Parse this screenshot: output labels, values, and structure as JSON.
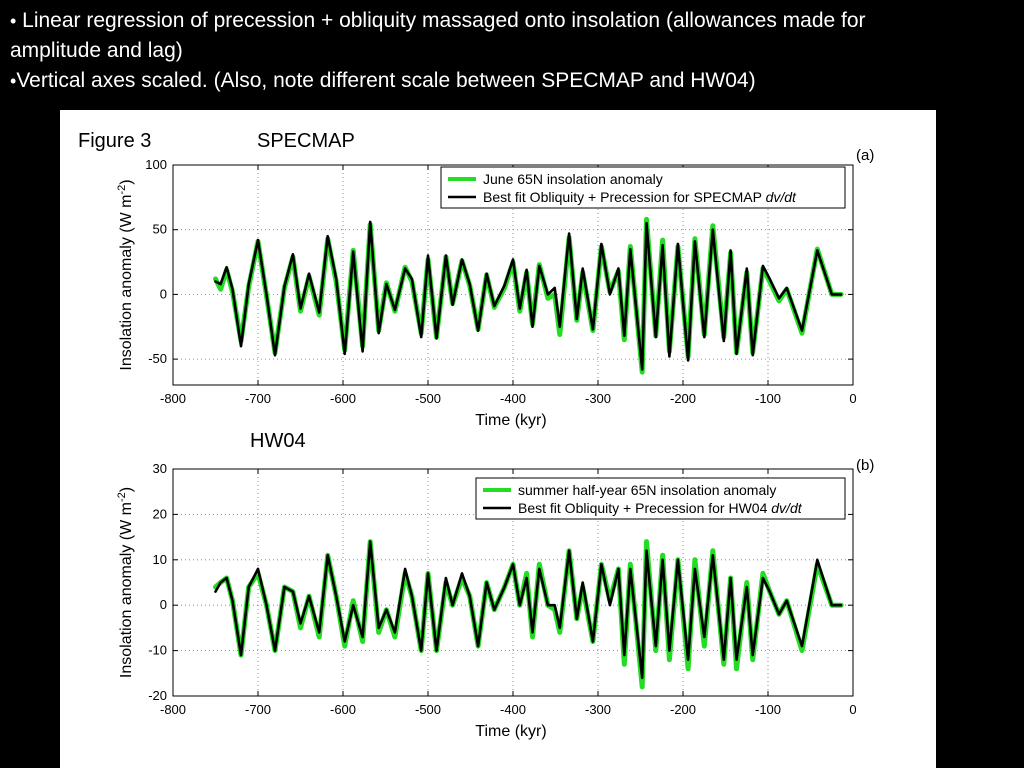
{
  "slide": {
    "bullet1_glyph": "•",
    "bullet1_line1": " Linear regression of precession + obliquity massaged onto insolation (allowances made for",
    "bullet1_line2": "amplitude and lag)",
    "bullet2_glyph": "•",
    "bullet2_text": "Vertical axes scaled. (Also, note different scale between SPECMAP and HW04)"
  },
  "figure": {
    "figure_label": "Figure 3",
    "colors": {
      "insolation": "#22dd22",
      "fit": "#000000",
      "grid": "#777777"
    }
  },
  "chart_data": [
    {
      "type": "line",
      "panel_label": "(a)",
      "heading": "SPECMAP",
      "title": "",
      "xlabel": "Time (kyr)",
      "ylabel": "Insolation anomaly (W m",
      "ylabel_sup": "-2",
      "ylabel_tail": ")",
      "xlim": [
        -800,
        0
      ],
      "ylim": [
        -70,
        100
      ],
      "xticks": [
        -800,
        -700,
        -600,
        -500,
        -400,
        -300,
        -200,
        -100,
        0
      ],
      "yticks": [
        -50,
        0,
        50,
        100
      ],
      "grid": true,
      "legend_position": "top-right",
      "series": [
        {
          "name": "June 65N insolation anomaly",
          "color": "#22dd22",
          "x": [
            -750,
            -744,
            -737,
            -730,
            -720,
            -711,
            -700,
            -690,
            -680,
            -669,
            -659,
            -650,
            -640,
            -628,
            -618,
            -608,
            -598,
            -588,
            -577,
            -568,
            -558,
            -549,
            -539,
            -527,
            -519,
            -508,
            -500,
            -490,
            -479,
            -471,
            -460,
            -451,
            -441,
            -431,
            -422,
            -410,
            -400,
            -392,
            -384,
            -377,
            -369,
            -359,
            -351,
            -345,
            -334,
            -325,
            -318,
            -306,
            -296,
            -286,
            -276,
            -269,
            -262,
            -248,
            -243,
            -232,
            -224,
            -216,
            -206,
            -194,
            -186,
            -175,
            -165,
            -152,
            -144,
            -137,
            -125,
            -118,
            -106,
            -98,
            -87,
            -78,
            -60,
            -42,
            -25,
            -14
          ],
          "y": [
            12,
            4,
            19,
            2,
            -36,
            6,
            41,
            -1,
            -45,
            5,
            29,
            -13,
            14,
            -16,
            43,
            10,
            -43,
            34,
            -40,
            54,
            -28,
            9,
            -13,
            21,
            10,
            -30,
            27,
            -33,
            29,
            -7,
            26,
            7,
            -27,
            15,
            -10,
            5,
            25,
            -13,
            17,
            -23,
            23,
            -3,
            0,
            -31,
            44,
            -20,
            17,
            -28,
            37,
            2,
            18,
            -35,
            37,
            -60,
            58,
            -32,
            42,
            -44,
            37,
            -48,
            43,
            -31,
            53,
            -33,
            32,
            -45,
            17,
            -45,
            20,
            10,
            -5,
            4,
            -30,
            35,
            0,
            0
          ]
        },
        {
          "name": "Best fit Obliquity + Precession for SPECMAP ",
          "name_italic": "dv/dt",
          "color": "#000000",
          "x": [
            -750,
            -744,
            -737,
            -730,
            -720,
            -711,
            -700,
            -690,
            -680,
            -669,
            -659,
            -650,
            -640,
            -628,
            -618,
            -608,
            -598,
            -588,
            -577,
            -568,
            -558,
            -549,
            -539,
            -527,
            -519,
            -508,
            -500,
            -490,
            -479,
            -471,
            -460,
            -451,
            -441,
            -431,
            -422,
            -410,
            -400,
            -392,
            -384,
            -377,
            -369,
            -359,
            -351,
            -345,
            -334,
            -325,
            -318,
            -306,
            -296,
            -286,
            -276,
            -269,
            -262,
            -248,
            -243,
            -232,
            -224,
            -216,
            -206,
            -194,
            -186,
            -175,
            -165,
            -152,
            -144,
            -137,
            -125,
            -118,
            -106,
            -98,
            -87,
            -78,
            -60,
            -42,
            -25,
            -14
          ],
          "y": [
            10,
            8,
            21,
            4,
            -40,
            8,
            42,
            0,
            -47,
            6,
            31,
            -11,
            16,
            -14,
            45,
            12,
            -46,
            33,
            -44,
            56,
            -30,
            8,
            -12,
            20,
            12,
            -33,
            30,
            -34,
            30,
            -8,
            27,
            8,
            -28,
            16,
            -9,
            7,
            27,
            -11,
            19,
            -25,
            22,
            0,
            5,
            -25,
            47,
            -19,
            20,
            -27,
            39,
            0,
            20,
            -32,
            35,
            -58,
            55,
            -33,
            38,
            -48,
            39,
            -51,
            41,
            -33,
            50,
            -36,
            34,
            -46,
            20,
            -47,
            22,
            12,
            -3,
            5,
            -28,
            34,
            0,
            0
          ]
        }
      ]
    },
    {
      "type": "line",
      "panel_label": "(b)",
      "heading": "HW04",
      "title": "",
      "xlabel": "Time (kyr)",
      "ylabel": "Insolation anomaly (W m",
      "ylabel_sup": "-2",
      "ylabel_tail": ")",
      "xlim": [
        -800,
        0
      ],
      "ylim": [
        -20,
        30
      ],
      "xticks": [
        -800,
        -700,
        -600,
        -500,
        -400,
        -300,
        -200,
        -100,
        0
      ],
      "yticks": [
        -20,
        -10,
        0,
        10,
        20,
        30
      ],
      "grid": true,
      "legend_position": "top-right",
      "series": [
        {
          "name": "summer half-year 65N insolation anomaly",
          "color": "#22dd22",
          "x": [
            -750,
            -744,
            -737,
            -730,
            -720,
            -711,
            -700,
            -690,
            -680,
            -669,
            -659,
            -650,
            -640,
            -628,
            -618,
            -608,
            -598,
            -588,
            -577,
            -568,
            -558,
            -549,
            -539,
            -527,
            -519,
            -508,
            -500,
            -490,
            -479,
            -471,
            -460,
            -451,
            -441,
            -431,
            -422,
            -410,
            -400,
            -392,
            -384,
            -377,
            -369,
            -359,
            -351,
            -345,
            -334,
            -325,
            -318,
            -306,
            -296,
            -286,
            -276,
            -269,
            -262,
            -248,
            -243,
            -232,
            -224,
            -216,
            -206,
            -194,
            -186,
            -175,
            -165,
            -152,
            -144,
            -137,
            -125,
            -118,
            -106,
            -98,
            -87,
            -78,
            -60,
            -42,
            -25,
            -14
          ],
          "y": [
            4,
            5,
            6,
            1,
            -11,
            4,
            7,
            0,
            -10,
            4,
            3,
            -5,
            2,
            -7,
            11,
            2,
            -9,
            1,
            -8,
            14,
            -6,
            -1,
            -7,
            7,
            2,
            -10,
            7,
            -10,
            5,
            0,
            6,
            2,
            -9,
            5,
            -1,
            4,
            9,
            0,
            7,
            -7,
            9,
            0,
            -1,
            -6,
            12,
            -3,
            4,
            -8,
            9,
            1,
            8,
            -13,
            9,
            -18,
            14,
            -10,
            11,
            -12,
            10,
            -14,
            10,
            -9,
            12,
            -13,
            6,
            -14,
            5,
            -12,
            7,
            3,
            -2,
            1,
            -10,
            9,
            0,
            0
          ]
        },
        {
          "name": "Best fit Obliquity + Precession for HW04 ",
          "name_italic": "dv/dt",
          "color": "#000000",
          "x": [
            -750,
            -744,
            -737,
            -730,
            -720,
            -711,
            -700,
            -690,
            -680,
            -669,
            -659,
            -650,
            -640,
            -628,
            -618,
            -608,
            -598,
            -588,
            -577,
            -568,
            -558,
            -549,
            -539,
            -527,
            -519,
            -508,
            -500,
            -490,
            -479,
            -471,
            -460,
            -451,
            -441,
            -431,
            -422,
            -410,
            -400,
            -392,
            -384,
            -377,
            -369,
            -359,
            -351,
            -345,
            -334,
            -325,
            -318,
            -306,
            -296,
            -286,
            -276,
            -269,
            -262,
            -248,
            -243,
            -232,
            -224,
            -216,
            -206,
            -194,
            -186,
            -175,
            -165,
            -152,
            -144,
            -137,
            -125,
            -118,
            -106,
            -98,
            -87,
            -78,
            -60,
            -42,
            -25,
            -14
          ],
          "y": [
            3,
            5,
            6,
            1,
            -11,
            4,
            8,
            0,
            -10,
            4,
            3,
            -4,
            2,
            -6,
            11,
            2,
            -8,
            0,
            -7,
            14,
            -5,
            -1,
            -6,
            8,
            2,
            -10,
            7,
            -10,
            6,
            0,
            7,
            2,
            -9,
            5,
            -1,
            4,
            9,
            0,
            6,
            -6,
            8,
            0,
            0,
            -5,
            12,
            -3,
            5,
            -8,
            9,
            0,
            8,
            -11,
            8,
            -16,
            12,
            -9,
            10,
            -10,
            10,
            -12,
            8,
            -7,
            11,
            -12,
            6,
            -12,
            4,
            -11,
            6,
            3,
            -2,
            1,
            -9,
            10,
            0,
            0
          ]
        }
      ]
    }
  ]
}
